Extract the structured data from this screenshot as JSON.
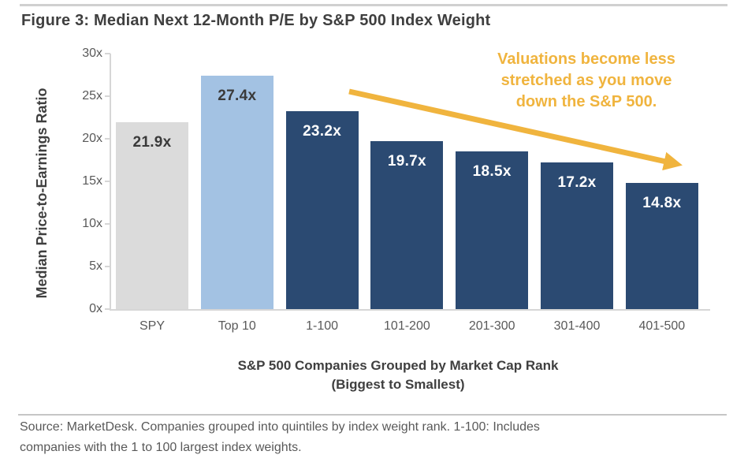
{
  "figure": {
    "title": "Figure 3: Median Next 12-Month P/E by S&P 500 Index Weight",
    "source_line1": "Source: MarketDesk. Companies grouped into quintiles by index weight rank. 1-100: Includes",
    "source_line2": "companies with the 1 to 100 largest index weights."
  },
  "chart_data": {
    "type": "bar",
    "title": "Figure 3: Median Next 12-Month P/E by S&P 500 Index Weight",
    "categories": [
      "SPY",
      "Top 10",
      "1-100",
      "101-200",
      "201-300",
      "301-400",
      "401-500"
    ],
    "values": [
      21.9,
      27.4,
      23.2,
      19.7,
      18.5,
      17.2,
      14.8
    ],
    "value_labels": [
      "21.9x",
      "27.4x",
      "23.2x",
      "19.7x",
      "18.5x",
      "17.2x",
      "14.8x"
    ],
    "bar_colors": [
      "#dbdbdb",
      "#a3c2e3",
      "#2b4a72",
      "#2b4a72",
      "#2b4a72",
      "#2b4a72",
      "#2b4a72"
    ],
    "value_label_colors": [
      "#3a3a3a",
      "#3a3a3a",
      "#ffffff",
      "#ffffff",
      "#ffffff",
      "#ffffff",
      "#ffffff"
    ],
    "xlabel_line1": "S&P 500 Companies Grouped by Market Cap Rank",
    "xlabel_line2": "(Biggest to Smallest)",
    "ylabel": "Median Price-to-Earnings Ratio",
    "ylim": [
      0,
      30
    ],
    "yticks": [
      0,
      5,
      10,
      15,
      20,
      25,
      30
    ],
    "ytick_labels": [
      "0x",
      "5x",
      "10x",
      "15x",
      "20x",
      "25x",
      "30x"
    ],
    "grid": false,
    "legend_position": "none",
    "annotation": {
      "lines": [
        "Valuations become less",
        "stretched as you move",
        "down the S&P 500."
      ],
      "color": "#f0b43e"
    },
    "arrow_color": "#f0b43e",
    "axis_color": "#d6d6d6"
  }
}
